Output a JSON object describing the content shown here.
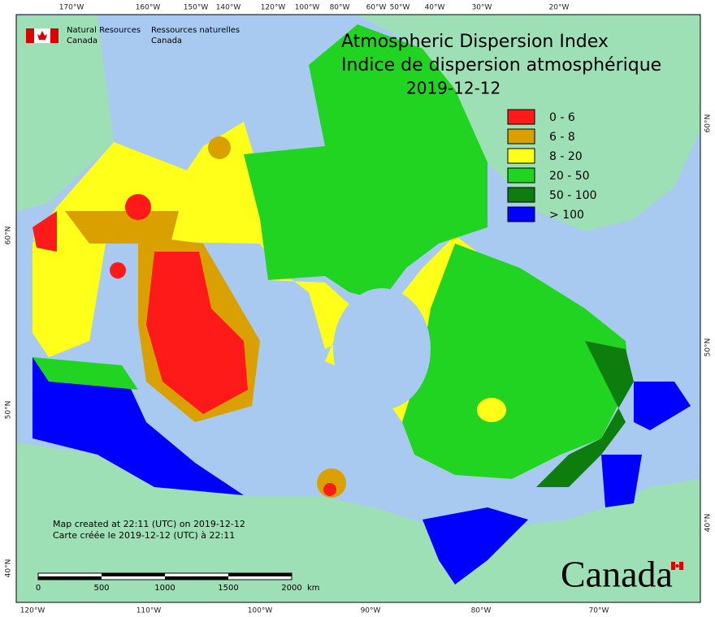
{
  "header": {
    "org_en": [
      "Natural Resources",
      "Canada"
    ],
    "org_fr": [
      "Ressources naturelles",
      "Canada"
    ]
  },
  "title": [
    "Atmospheric Dispersion Index",
    "Indice de dispersion atmosphérique"
  ],
  "date": "2019-12-12",
  "legend": [
    {
      "label": "0 - 6",
      "color": "#ff1a1a"
    },
    {
      "label": "6 - 8",
      "color": "#d9a000"
    },
    {
      "label": "8 - 20",
      "color": "#ffff1a"
    },
    {
      "label": "20 - 50",
      "color": "#22d422"
    },
    {
      "label": "50 - 100",
      "color": "#0d7d0d"
    },
    {
      "label": "> 100",
      "color": "#0000ff"
    }
  ],
  "top_labels": [
    "170°W",
    "160°W",
    "150°W",
    "140°W",
    "120°W",
    "100°W",
    "80°W",
    "60°W",
    "50°W",
    "40°W",
    "30°W",
    "20°W"
  ],
  "bottom_labels": [
    "120°W",
    "110°W",
    "100°W",
    "90°W",
    "80°W",
    "70°W"
  ],
  "left_labels": [
    "60°N",
    "50°N",
    "40°N"
  ],
  "right_labels": [
    "60°N",
    "50°N",
    "40°N"
  ],
  "notes": [
    "Map created at 22:11 (UTC) on 2019-12-12",
    "Carte créée le 2019-12-12 (UTC) à 22:11"
  ],
  "scale": {
    "ticks": [
      "0",
      "500",
      "1000",
      "1500",
      "2000"
    ],
    "unit": "km"
  },
  "wordmark": "Canada"
}
